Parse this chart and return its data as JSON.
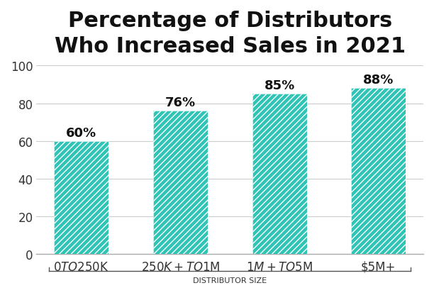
{
  "title": "Percentage of Distributors\nWho Increased Sales in 2021",
  "categories": [
    "$0 TO $250K",
    "$250K+ TO $1M",
    "$1M+ TO $5M",
    "$5M+"
  ],
  "values": [
    60,
    76,
    85,
    88
  ],
  "labels": [
    "60%",
    "76%",
    "85%",
    "88%"
  ],
  "bar_color": "#2ec4b6",
  "hatch_color": "#ffffff",
  "xlabel": "DISTRIBUTOR SIZE",
  "ylim": [
    0,
    100
  ],
  "yticks": [
    0,
    20,
    40,
    60,
    80,
    100
  ],
  "background_color": "#ffffff",
  "title_fontsize": 22,
  "label_fontsize": 13,
  "tick_fontsize": 12,
  "xlabel_fontsize": 8,
  "bar_width": 0.55
}
